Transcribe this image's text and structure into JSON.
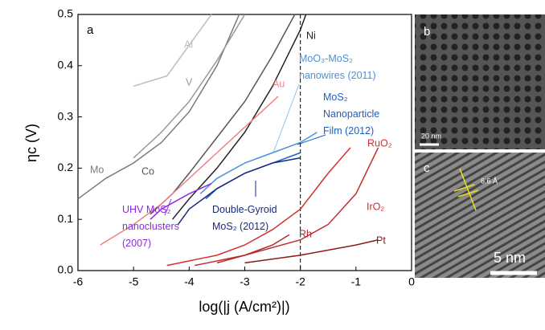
{
  "chart_data": {
    "type": "line",
    "panel_label": "a",
    "x_label": "log(|j (A/cm²)|)",
    "y_label": "ηc (V)",
    "xlim": [
      -6,
      0
    ],
    "ylim": [
      0,
      0.5
    ],
    "xticks": [
      -6,
      -5,
      -4,
      -3,
      -2,
      -1,
      0
    ],
    "yticks": [
      {
        "value": 0,
        "label": "0.0"
      },
      0.1,
      0.2,
      0.3,
      0.4,
      0.5
    ],
    "reference_x": -2,
    "series": [
      {
        "name": "Mo",
        "color": "#7a7a7a",
        "x": [
          -6,
          -5.5,
          -5,
          -4.5,
          -4,
          -3.5,
          -3.1
        ],
        "values": [
          0.14,
          0.18,
          0.21,
          0.25,
          0.31,
          0.4,
          0.5
        ]
      },
      {
        "name": "Al",
        "color": "#bdbdbd",
        "x": [
          -5,
          -4.4,
          -4,
          -3.6
        ],
        "values": [
          0.36,
          0.38,
          0.44,
          0.5
        ]
      },
      {
        "name": "V",
        "color": "#999999",
        "x": [
          -5,
          -4.5,
          -4,
          -3.5,
          -3
        ],
        "values": [
          0.22,
          0.27,
          0.33,
          0.41,
          0.5
        ]
      },
      {
        "name": "Co",
        "color": "#555555",
        "x": [
          -4.7,
          -4.3,
          -4,
          -3.5,
          -3,
          -2.5,
          -2.1
        ],
        "values": [
          0.11,
          0.15,
          0.19,
          0.26,
          0.33,
          0.42,
          0.5
        ]
      },
      {
        "name": "Ni",
        "color": "#222222",
        "x": [
          -4.3,
          -4,
          -3.5,
          -3,
          -2.5,
          -2,
          -1.9
        ],
        "values": [
          0.1,
          0.14,
          0.2,
          0.27,
          0.36,
          0.47,
          0.5
        ]
      },
      {
        "name": "Au",
        "color": "#f08080",
        "x": [
          -5.6,
          -5,
          -4.5,
          -4,
          -3.5,
          -3,
          -2.4
        ],
        "values": [
          0.05,
          0.09,
          0.13,
          0.18,
          0.23,
          0.28,
          0.34
        ]
      },
      {
        "name": "MoO₃-MoS₂ nanowires (2011)",
        "color": "#4a90d9",
        "x": [
          -3.8,
          -3.5,
          -3,
          -2.5,
          -2,
          -1.7
        ],
        "values": [
          0.15,
          0.18,
          0.21,
          0.23,
          0.25,
          0.27
        ]
      },
      {
        "name": "MoS₂ Nanoparticle Film (2012)",
        "color": "#1f5fbf",
        "x": [
          -3.7,
          -3.5,
          -3,
          -2.5,
          -2
        ],
        "values": [
          0.14,
          0.16,
          0.19,
          0.21,
          0.23
        ]
      },
      {
        "name": "Double-Gyroid MoS₂ (2012)",
        "color": "#1a2a80",
        "x": [
          -4.2,
          -4,
          -3.5,
          -3,
          -2.5,
          -2
        ],
        "values": [
          0.09,
          0.12,
          0.16,
          0.19,
          0.21,
          0.22
        ]
      },
      {
        "name": "UHV MoS₂ nanoclusters (2007)",
        "color": "#8a2be2",
        "x": [
          -4.7,
          -4.5,
          -4,
          -3.6
        ],
        "values": [
          0.1,
          0.12,
          0.15,
          0.17
        ]
      },
      {
        "name": "RuO₂",
        "color": "#d43030",
        "x": [
          -4.4,
          -3.5,
          -3,
          -2.5,
          -2,
          -1.5,
          -1.1
        ],
        "values": [
          0.01,
          0.03,
          0.05,
          0.08,
          0.12,
          0.19,
          0.24
        ]
      },
      {
        "name": "IrO₂",
        "color": "#c03030",
        "x": [
          -3.9,
          -3,
          -2,
          -1.5,
          -1,
          -0.6
        ],
        "values": [
          0.01,
          0.03,
          0.06,
          0.09,
          0.15,
          0.24
        ]
      },
      {
        "name": "Rh",
        "color": "#b02a2a",
        "x": [
          -3.5,
          -3,
          -2.5,
          -2.2
        ],
        "values": [
          0.015,
          0.03,
          0.05,
          0.07
        ]
      },
      {
        "name": "Pt",
        "color": "#8b1a1a",
        "x": [
          -3,
          -2,
          -1,
          -0.6
        ],
        "values": [
          0.015,
          0.03,
          0.05,
          0.06
        ]
      }
    ]
  },
  "images": [
    {
      "label": "b",
      "scale_bar": "20 nm"
    },
    {
      "label": "c",
      "scale_bar": "5 nm",
      "annotation": "6.6 Å"
    }
  ]
}
